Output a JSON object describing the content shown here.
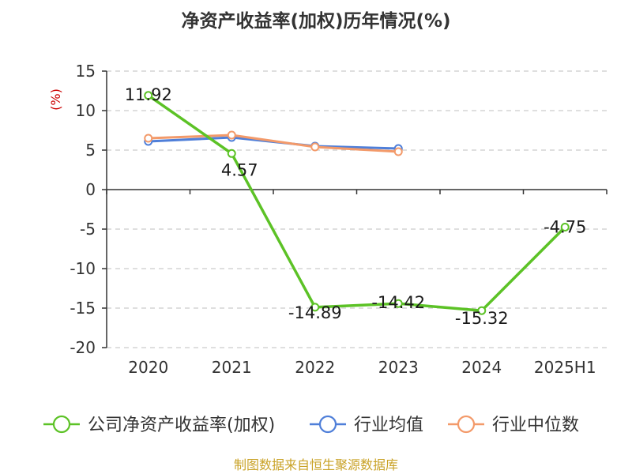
{
  "chart_data": {
    "type": "line",
    "title": "净资产收益率(加权)历年情况(%)",
    "unit_label": "(%)",
    "categories": [
      "2020",
      "2021",
      "2022",
      "2023",
      "2024",
      "2025H1"
    ],
    "ylim": [
      -20,
      15
    ],
    "yticks": [
      15,
      10,
      5,
      0,
      -5,
      -10,
      -15,
      -20
    ],
    "grid": true,
    "legend_position": "bottom",
    "series": [
      {
        "name": "公司净资产收益率(加权)",
        "color": "#5cc226",
        "values": [
          11.92,
          4.57,
          -14.89,
          -14.42,
          -15.32,
          -4.75
        ],
        "labels": [
          "11.92",
          "4.57",
          "-14.89",
          "-14.42",
          "-15.32",
          "-4.75"
        ]
      },
      {
        "name": "行业均值",
        "color": "#4f7fd9",
        "values": [
          6.1,
          6.6,
          5.5,
          5.2,
          null,
          null
        ]
      },
      {
        "name": "行业中位数",
        "color": "#f39a6a",
        "values": [
          6.5,
          6.9,
          5.4,
          4.8,
          null,
          null
        ]
      }
    ]
  },
  "source": "制图数据来自恒生聚源数据库"
}
